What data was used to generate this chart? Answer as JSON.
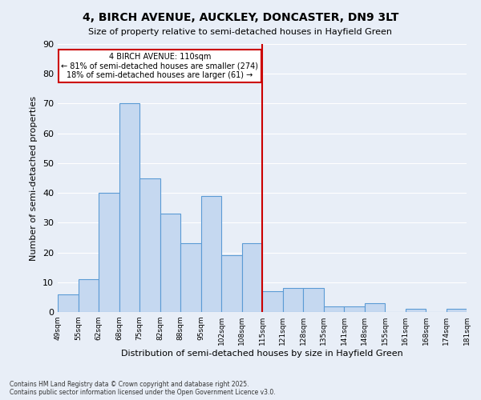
{
  "title_line1": "4, BIRCH AVENUE, AUCKLEY, DONCASTER, DN9 3LT",
  "title_line2": "Size of property relative to semi-detached houses in Hayfield Green",
  "xlabel": "Distribution of semi-detached houses by size in Hayfield Green",
  "ylabel": "Number of semi-detached properties",
  "categories": [
    "49sqm",
    "55sqm",
    "62sqm",
    "68sqm",
    "75sqm",
    "82sqm",
    "88sqm",
    "95sqm",
    "102sqm",
    "108sqm",
    "115sqm",
    "121sqm",
    "128sqm",
    "135sqm",
    "141sqm",
    "148sqm",
    "155sqm",
    "161sqm",
    "168sqm",
    "174sqm",
    "181sqm"
  ],
  "values": [
    6,
    11,
    40,
    70,
    45,
    33,
    23,
    39,
    19,
    23,
    7,
    8,
    8,
    2,
    2,
    3,
    0,
    1,
    0,
    1
  ],
  "bar_color": "#c5d8f0",
  "bar_edgecolor": "#5b9bd5",
  "background_color": "#e8eef7",
  "grid_color": "#ffffff",
  "vline_color": "#cc0000",
  "annotation_title": "4 BIRCH AVENUE: 110sqm",
  "annotation_line1": "← 81% of semi-detached houses are smaller (274)",
  "annotation_line2": "18% of semi-detached houses are larger (61) →",
  "annotation_box_color": "#cc0000",
  "ylim": [
    0,
    90
  ],
  "yticks": [
    0,
    10,
    20,
    30,
    40,
    50,
    60,
    70,
    80,
    90
  ],
  "footnote1": "Contains HM Land Registry data © Crown copyright and database right 2025.",
  "footnote2": "Contains public sector information licensed under the Open Government Licence v3.0."
}
